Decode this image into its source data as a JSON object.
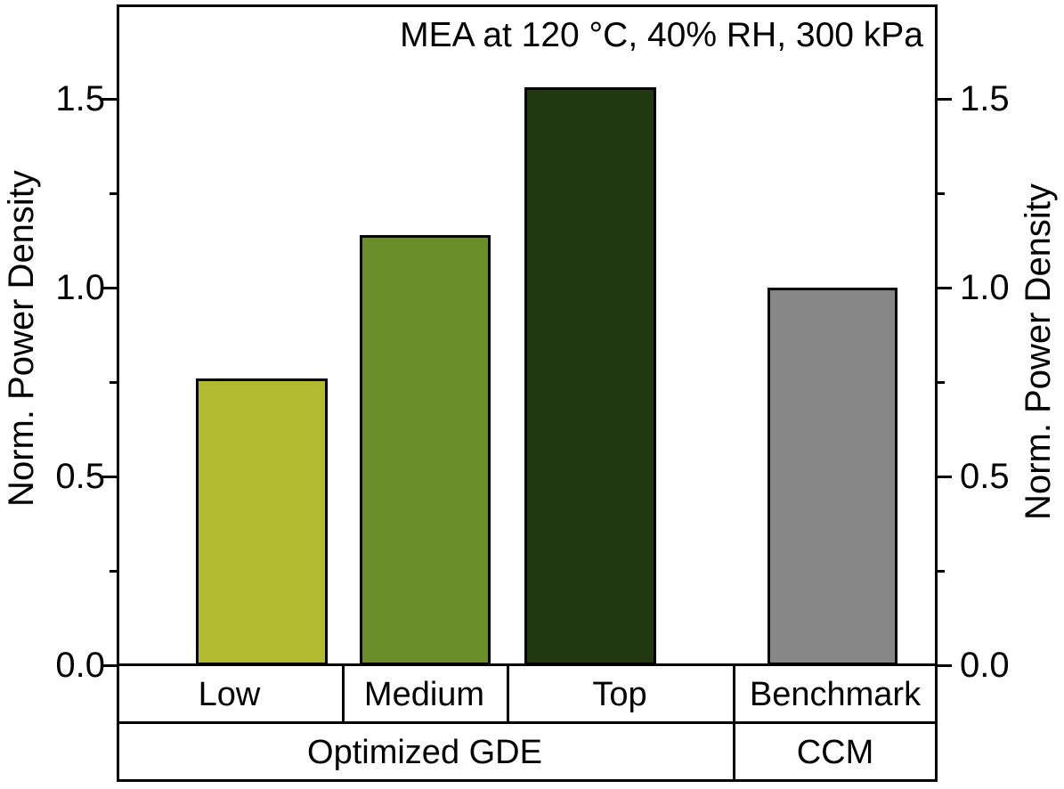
{
  "title": "MEA at 120 °C, 40% RH, 300 kPa",
  "axes": {
    "left_label": "Norm. Power Density",
    "right_label": "Norm. Power Density",
    "major_ticks": [
      {
        "value": 0.0,
        "label": "0.0"
      },
      {
        "value": 0.5,
        "label": "0.5"
      },
      {
        "value": 1.0,
        "label": "1.0"
      },
      {
        "value": 1.5,
        "label": "1.5"
      }
    ],
    "minor_ticks": [
      0.25,
      0.75,
      1.25
    ]
  },
  "chart_data": {
    "type": "bar",
    "title": "MEA at 120 °C, 40% RH, 300 kPa",
    "categories": [
      "Low",
      "Medium",
      "Top",
      "Benchmark"
    ],
    "values": [
      0.76,
      1.14,
      1.53,
      1.0
    ],
    "bar_colors": [
      "#b2bb2d",
      "#6a8e2b",
      "#213810",
      "#878787"
    ],
    "bar_edge_color": "#000000",
    "groups": [
      {
        "label": "Optimized GDE",
        "span": [
          "Low",
          "Medium",
          "Top"
        ]
      },
      {
        "label": "CCM",
        "span": [
          "Benchmark"
        ]
      }
    ],
    "xlabel": "",
    "ylabel": "Norm. Power Density",
    "ylabel_right": "Norm. Power Density",
    "ylim": [
      0,
      1.75
    ],
    "grid": false,
    "legend": "none"
  }
}
